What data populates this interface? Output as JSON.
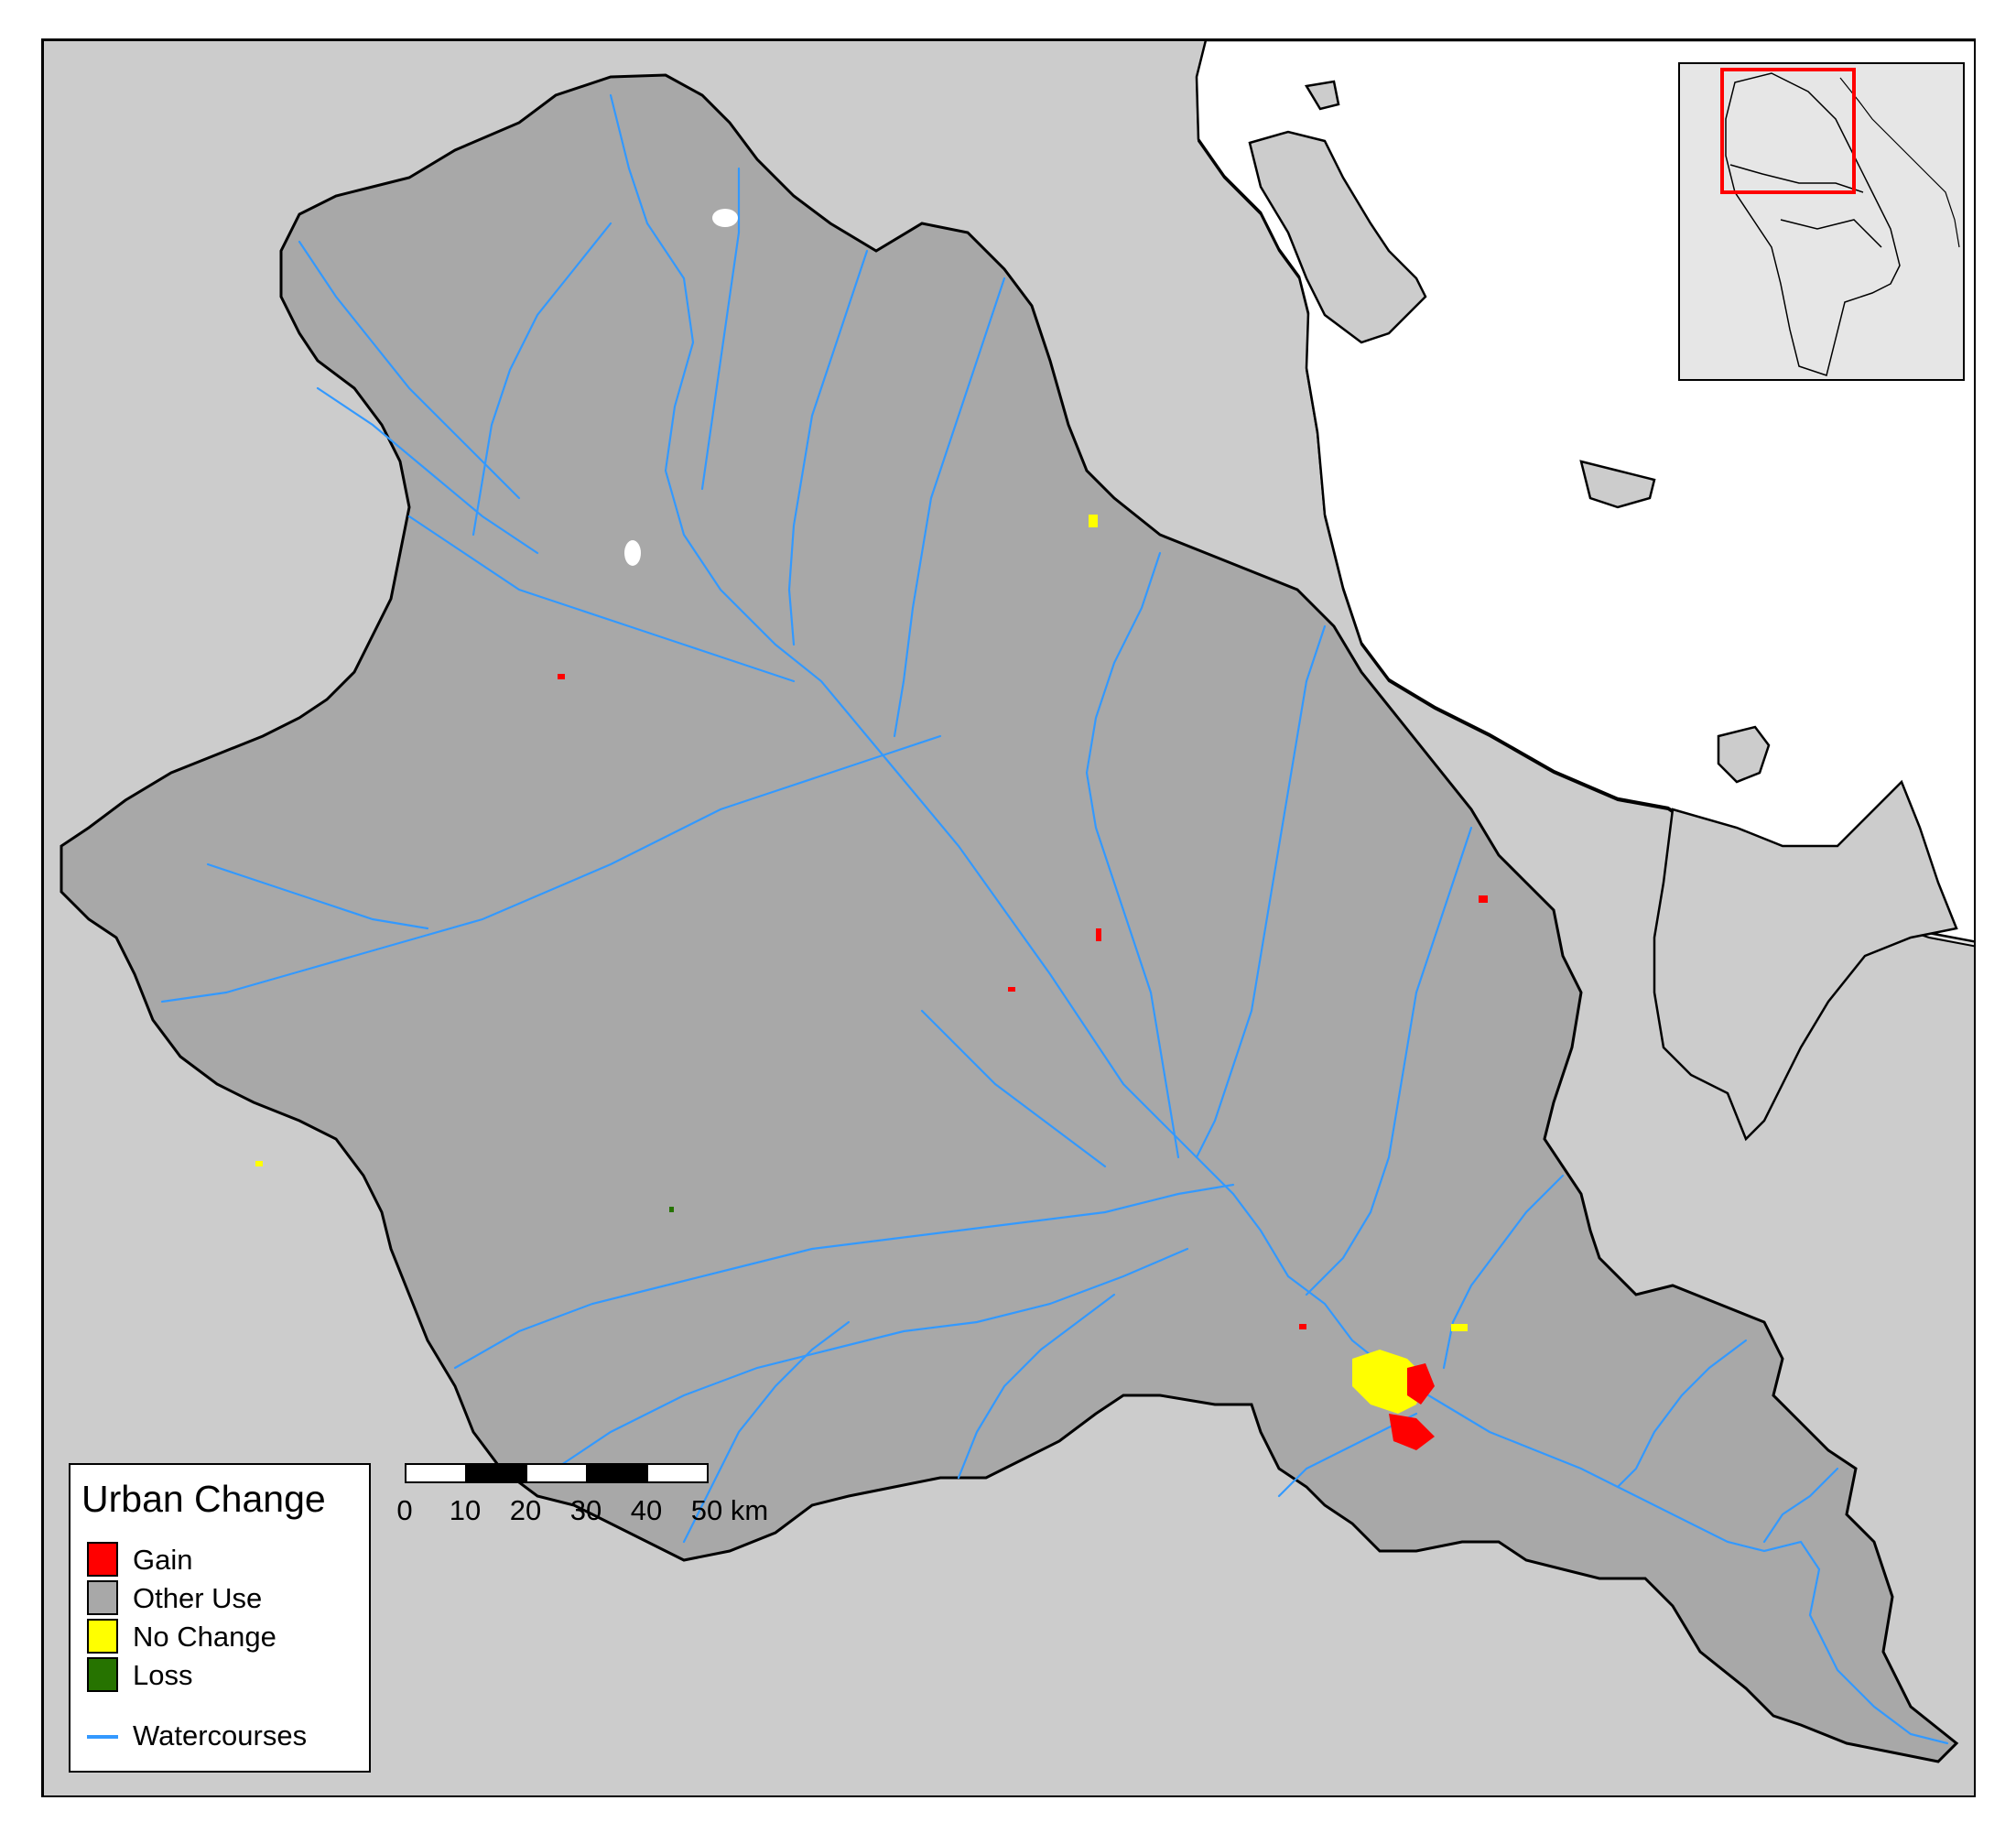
{
  "legend": {
    "title": "Urban Change",
    "items": [
      {
        "label": "Gain",
        "color": "#ff0000"
      },
      {
        "label": "Other Use",
        "color": "#a8a8a8"
      },
      {
        "label": "No Change",
        "color": "#ffff00"
      },
      {
        "label": "Loss",
        "color": "#267300"
      }
    ],
    "line_item": {
      "label": "Watercourses",
      "color": "#3399ff"
    }
  },
  "scalebar": {
    "ticks": [
      "0",
      "10",
      "20",
      "30",
      "40",
      "50 km"
    ]
  },
  "colors": {
    "basin": "#a8a8a8",
    "background_land": "#e3e3e3",
    "neighbor_land": "#cccccc",
    "sea": "#ffffff",
    "watercourses": "#3399ff",
    "gain": "#ff0000",
    "no_change": "#ffff00",
    "loss": "#267300",
    "inset_extent": "#ff0000"
  }
}
